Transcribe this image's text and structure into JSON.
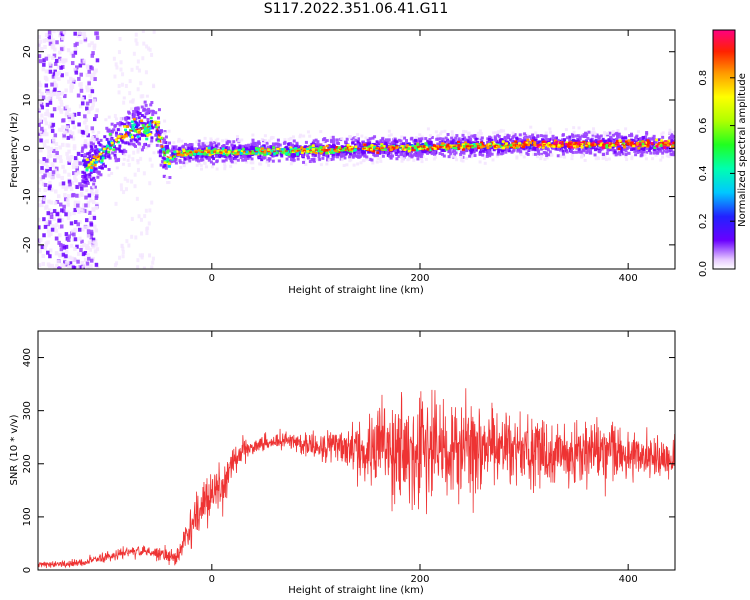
{
  "figure_title": "S117.2022.351.06.41.G11",
  "colors": {
    "snr_line": "#ee3333",
    "spectrum_ridge": "#ff2200",
    "axis": "#000000"
  },
  "chart_data": [
    {
      "type": "heatmap",
      "title": "",
      "xlabel": "Height of straight line (km)",
      "ylabel": "Frequency (Hz)",
      "xlim": [
        -167,
        445
      ],
      "ylim": [
        -25,
        24.5
      ],
      "xticks": [
        0,
        200,
        400
      ],
      "yticks": [
        -20,
        -10,
        0,
        10,
        20
      ],
      "colorbar": {
        "label": "Normalized spectral amplitude",
        "range": [
          0,
          1
        ],
        "ticks": [
          "0.0",
          "0.2",
          "0.4",
          "0.6",
          "0.8"
        ],
        "colormap": "hsv_rainbow"
      },
      "ridge": {
        "x": [
          -120,
          -100,
          -90,
          -80,
          -70,
          -60,
          -55,
          -50,
          -45,
          -40,
          -35,
          -30,
          -20,
          0,
          50,
          100,
          150,
          200,
          250,
          300,
          350,
          400,
          445
        ],
        "y": [
          -4,
          0,
          1.5,
          3.5,
          4,
          4.5,
          6,
          2,
          -1.5,
          -2,
          -1.2,
          -1,
          -0.8,
          -0.8,
          -0.7,
          -0.4,
          0,
          0.2,
          0.5,
          0.7,
          0.8,
          0.8,
          0.8
        ]
      },
      "scatter_region": {
        "x": [
          -167,
          -110
        ],
        "y": [
          -25,
          24.5
        ]
      },
      "grid": false
    },
    {
      "type": "line",
      "title": "",
      "xlabel": "Height of straight line (km)",
      "ylabel": "SNR (10 * v/v)",
      "xlim": [
        -167,
        445
      ],
      "ylim": [
        0,
        450
      ],
      "xticks": [
        0,
        200,
        400
      ],
      "yticks": [
        0,
        100,
        200,
        300,
        400
      ],
      "baseline": {
        "x": [
          -167,
          -130,
          -100,
          -80,
          -60,
          -45,
          -35,
          -25,
          -15,
          0,
          10,
          20,
          30,
          50,
          80,
          100,
          150,
          200,
          250,
          300,
          350,
          400,
          445
        ],
        "y": [
          10,
          12,
          25,
          35,
          35,
          28,
          25,
          60,
          110,
          140,
          160,
          200,
          225,
          240,
          245,
          230,
          230,
          220,
          230,
          225,
          220,
          215,
          215
        ]
      },
      "amplitude": {
        "x": [
          -167,
          -100,
          -50,
          -30,
          -20,
          0,
          20,
          40,
          80,
          120,
          140,
          160,
          180,
          200,
          240,
          280,
          320,
          360,
          400,
          445
        ],
        "y": [
          4,
          8,
          12,
          18,
          35,
          45,
          25,
          12,
          15,
          30,
          50,
          80,
          90,
          85,
          80,
          60,
          55,
          50,
          45,
          40
        ]
      },
      "grid": false
    }
  ]
}
